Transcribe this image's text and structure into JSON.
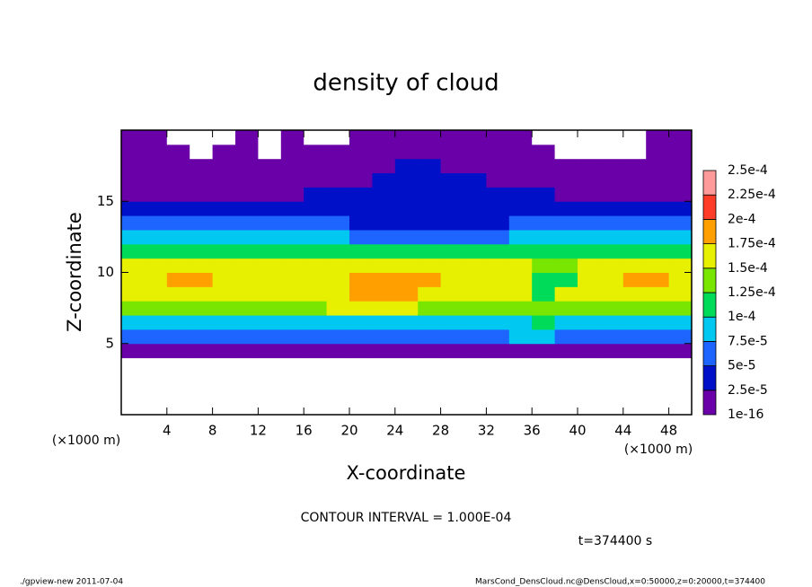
{
  "chart_data": {
    "type": "contour",
    "title": "density of cloud",
    "x_label": "X-coordinate",
    "y_label": "Z-coordinate",
    "x_unit": "(×1000 m)",
    "y_unit": "(×1000 m)",
    "contour_note": "CONTOUR INTERVAL = 1.000E-04",
    "time_note": "t=374400 s",
    "footer_left": "./gpview-new  2011-07-04",
    "footer_right": "MarsCond_DensCloud.nc@DensCloud,x=0:50000,z=0:20000,t=374400",
    "xlim": [
      0,
      50
    ],
    "ylim": [
      0,
      20
    ],
    "xticks": [
      4,
      8,
      12,
      16,
      20,
      24,
      28,
      32,
      36,
      40,
      44,
      48
    ],
    "yticks": [
      5,
      10,
      15
    ],
    "x": [
      1,
      3,
      5,
      7,
      9,
      11,
      13,
      15,
      17,
      19,
      21,
      23,
      25,
      27,
      29,
      31,
      33,
      35,
      37,
      39,
      41,
      43,
      45,
      47,
      49
    ],
    "y": [
      0.5,
      1.5,
      2.5,
      3.5,
      4.5,
      5.5,
      6.5,
      7.5,
      8.5,
      9.5,
      10.5,
      11.5,
      12.5,
      13.5,
      14.5,
      15.5,
      16.5,
      17.5,
      18.5,
      19.5
    ],
    "levels": [
      {
        "value": 1e-16,
        "label": "1e-16"
      },
      {
        "value": 2.5e-05,
        "label": "2.5e-5"
      },
      {
        "value": 5e-05,
        "label": "5e-5"
      },
      {
        "value": 7.5e-05,
        "label": "7.5e-5"
      },
      {
        "value": 0.0001,
        "label": "1e-4"
      },
      {
        "value": 0.000125,
        "label": "1.25e-4"
      },
      {
        "value": 0.00015,
        "label": "1.5e-4"
      },
      {
        "value": 0.000175,
        "label": "1.75e-4"
      },
      {
        "value": 0.0002,
        "label": "2e-4"
      },
      {
        "value": 0.000225,
        "label": "2.25e-4"
      },
      {
        "value": 0.00025,
        "label": "2.5e-4"
      }
    ],
    "colors": [
      "#6a00a8",
      "#0010c8",
      "#1e64ff",
      "#00c8f0",
      "#00dc5a",
      "#78e600",
      "#e6f000",
      "#ffa000",
      "#ff3c28",
      "#ff9a9a"
    ],
    "values": [
      [
        0,
        0,
        0,
        0,
        0,
        0,
        0,
        0,
        0,
        0,
        0,
        0,
        0,
        0,
        0,
        0,
        0,
        0,
        0,
        0,
        0,
        0,
        0,
        0,
        0
      ],
      [
        0,
        0,
        0,
        0,
        0,
        0,
        0,
        0,
        0,
        0,
        0,
        0,
        0,
        0,
        0,
        0,
        0,
        0,
        0,
        0,
        0,
        0,
        0,
        0,
        0
      ],
      [
        0,
        0,
        0,
        0,
        0,
        0,
        0,
        0,
        0,
        0,
        0,
        0,
        0,
        0,
        0,
        0,
        0,
        0,
        0,
        0,
        0,
        0,
        0,
        0,
        0
      ],
      [
        0,
        0,
        0,
        0,
        0,
        0,
        0,
        0,
        0,
        0,
        0,
        0,
        0,
        0,
        0,
        0,
        0,
        0,
        0,
        0,
        0,
        0,
        0,
        0,
        0
      ],
      [
        1e-05,
        1e-05,
        1e-05,
        1e-05,
        1e-05,
        1e-05,
        1e-05,
        1e-05,
        1e-05,
        1e-05,
        1e-05,
        1e-05,
        1e-05,
        1e-05,
        1e-05,
        1e-05,
        1e-05,
        1e-05,
        1e-05,
        1e-05,
        1e-05,
        1e-05,
        1e-05,
        1e-05,
        1e-05
      ],
      [
        5e-05,
        5e-05,
        5e-05,
        5e-05,
        5e-05,
        5e-05,
        5e-05,
        5e-05,
        5e-05,
        5e-05,
        5e-05,
        5e-05,
        5e-05,
        5e-05,
        5e-05,
        5e-05,
        5e-05,
        8e-05,
        8e-05,
        5e-05,
        5e-05,
        5e-05,
        5e-05,
        5e-05,
        5e-05
      ],
      [
        9e-05,
        9e-05,
        9e-05,
        9e-05,
        9e-05,
        9e-05,
        9e-05,
        9e-05,
        9e-05,
        9e-05,
        9e-05,
        9e-05,
        9e-05,
        9e-05,
        9e-05,
        9e-05,
        9e-05,
        9e-05,
        0.00011,
        9e-05,
        9e-05,
        9e-05,
        9e-05,
        9e-05,
        9e-05
      ],
      [
        0.00013,
        0.00013,
        0.00013,
        0.00013,
        0.00013,
        0.00013,
        0.00013,
        0.00013,
        0.00013,
        0.00015,
        0.00015,
        0.00015,
        0.00015,
        0.00013,
        0.00013,
        0.00013,
        0.00013,
        0.00013,
        0.00013,
        0.00013,
        0.00013,
        0.00013,
        0.00013,
        0.00013,
        0.00013
      ],
      [
        0.00016,
        0.00016,
        0.00016,
        0.00016,
        0.00016,
        0.00016,
        0.00016,
        0.00016,
        0.00016,
        0.00016,
        0.00018,
        0.00018,
        0.00018,
        0.00016,
        0.00016,
        0.00016,
        0.00016,
        0.00016,
        0.00012,
        0.00016,
        0.00016,
        0.00016,
        0.00016,
        0.00016,
        0.00017
      ],
      [
        0.00017,
        0.00017,
        0.00018,
        0.00018,
        0.00017,
        0.00017,
        0.00017,
        0.00017,
        0.00017,
        0.00017,
        0.00019,
        0.00019,
        0.00019,
        0.00019,
        0.00017,
        0.00017,
        0.00017,
        0.00017,
        0.00012,
        0.00012,
        0.00017,
        0.00017,
        0.00018,
        0.00018,
        0.00017
      ],
      [
        0.00016,
        0.00016,
        0.00016,
        0.00016,
        0.00016,
        0.00016,
        0.00016,
        0.00016,
        0.00016,
        0.00017,
        0.00017,
        0.00017,
        0.00017,
        0.00016,
        0.00016,
        0.00016,
        0.00016,
        0.00016,
        0.00013,
        0.00013,
        0.00016,
        0.00016,
        0.00016,
        0.00016,
        0.00016
      ],
      [
        0.00012,
        0.00012,
        0.00012,
        0.00012,
        0.00012,
        0.00012,
        0.00012,
        0.00012,
        0.00012,
        0.00012,
        0.00012,
        0.00012,
        0.00012,
        0.00012,
        0.00012,
        0.00012,
        0.00012,
        0.00012,
        0.0001,
        0.0001,
        0.0001,
        0.00012,
        0.00012,
        0.00012,
        0.00012
      ],
      [
        8e-05,
        8e-05,
        8e-05,
        8e-05,
        8e-05,
        8e-05,
        8e-05,
        8e-05,
        8e-05,
        8e-05,
        6e-05,
        6e-05,
        6e-05,
        6e-05,
        6e-05,
        6e-05,
        6e-05,
        8e-05,
        8e-05,
        8e-05,
        8e-05,
        8e-05,
        8e-05,
        8e-05,
        8e-05
      ],
      [
        5e-05,
        5e-05,
        5e-05,
        5e-05,
        5e-05,
        5e-05,
        5e-05,
        5e-05,
        5e-05,
        5e-05,
        4e-05,
        4e-05,
        4e-05,
        4e-05,
        4e-05,
        4e-05,
        4e-05,
        5e-05,
        5e-05,
        5e-05,
        5e-05,
        5e-05,
        5e-05,
        5e-05,
        5e-05
      ],
      [
        3.5e-05,
        3.5e-05,
        3.5e-05,
        3.5e-05,
        3.5e-05,
        3.5e-05,
        3.5e-05,
        3.5e-05,
        3.5e-05,
        3.5e-05,
        4e-05,
        4e-05,
        4e-05,
        4e-05,
        4e-05,
        4e-05,
        4e-05,
        3.5e-05,
        3.5e-05,
        3.5e-05,
        3.5e-05,
        3.5e-05,
        3.5e-05,
        3.5e-05,
        3.5e-05
      ],
      [
        2e-05,
        2e-05,
        2e-05,
        2e-05,
        2e-05,
        2e-05,
        2e-05,
        2e-05,
        3e-05,
        3e-05,
        3e-05,
        4e-05,
        4e-05,
        4e-05,
        4e-05,
        4e-05,
        3e-05,
        3e-05,
        3e-05,
        2e-05,
        2e-05,
        2e-05,
        2e-05,
        2e-05,
        2e-05
      ],
      [
        1.5e-05,
        1.5e-05,
        1.5e-05,
        1.5e-05,
        1.5e-05,
        1.5e-05,
        1.5e-05,
        1.5e-05,
        1.5e-05,
        1.5e-05,
        1.5e-05,
        3e-05,
        3e-05,
        3e-05,
        3e-05,
        3e-05,
        1.5e-05,
        1.5e-05,
        1.5e-05,
        1.5e-05,
        1.5e-05,
        1.5e-05,
        1.5e-05,
        1.5e-05,
        1.5e-05
      ],
      [
        1e-05,
        1e-05,
        1e-05,
        1e-05,
        1e-05,
        1e-05,
        1e-05,
        1e-05,
        1e-05,
        1e-05,
        1e-05,
        1e-05,
        2.6e-05,
        2.6e-05,
        1e-05,
        1e-05,
        1e-05,
        1e-05,
        1e-05,
        1e-05,
        1e-05,
        1e-05,
        1e-05,
        1e-05,
        1e-05
      ],
      [
        5e-06,
        5e-06,
        5e-06,
        0,
        5e-06,
        5e-06,
        0,
        5e-06,
        5e-06,
        5e-06,
        5e-06,
        5e-06,
        5e-06,
        5e-06,
        5e-06,
        5e-06,
        5e-06,
        5e-06,
        5e-06,
        0,
        0,
        0,
        0,
        5e-06,
        5e-06
      ],
      [
        5e-06,
        5e-06,
        0,
        0,
        0,
        5e-06,
        0,
        5e-06,
        0,
        0,
        5e-06,
        5e-06,
        5e-06,
        5e-06,
        5e-06,
        5e-06,
        5e-06,
        5e-06,
        0,
        0,
        0,
        0,
        0,
        5e-06,
        5e-06
      ]
    ]
  }
}
